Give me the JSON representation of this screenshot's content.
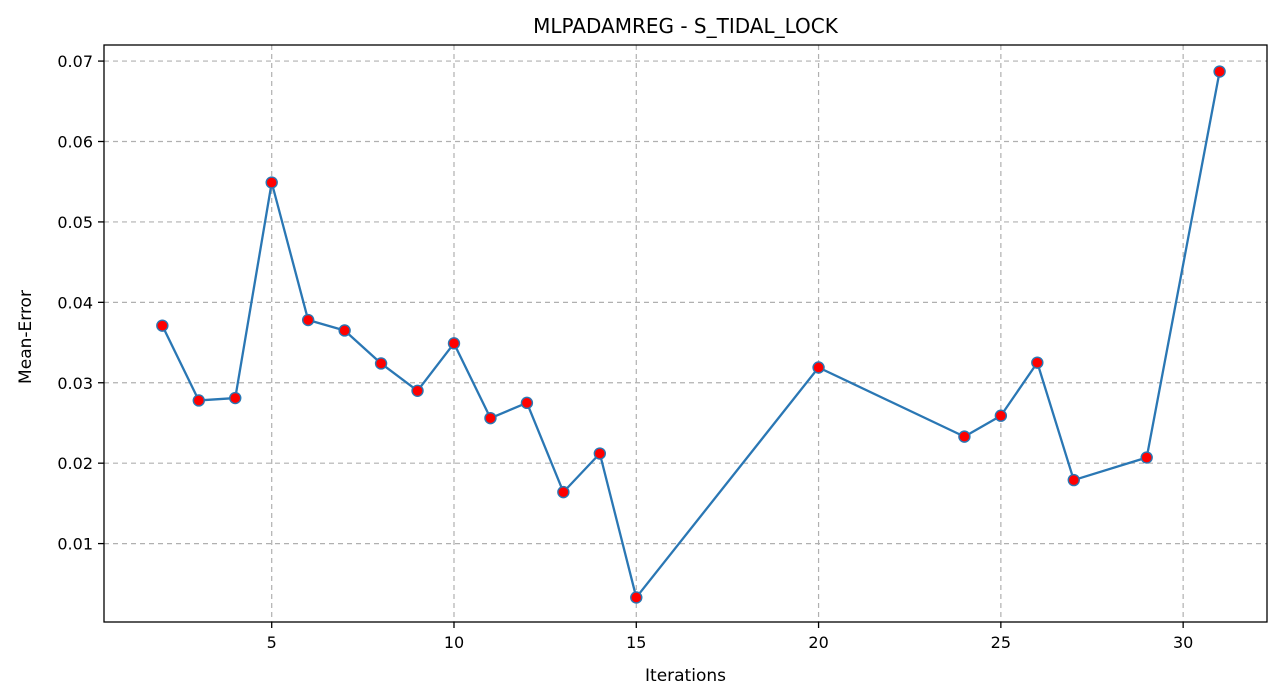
{
  "chart_data": {
    "type": "line",
    "title": "MLPADAMREG - S_TIDAL_LOCK",
    "xlabel": "Iterations",
    "ylabel": "Mean-Error",
    "xlim": [
      0.4,
      32.3
    ],
    "ylim": [
      0.00025,
      0.072
    ],
    "xticks": [
      5,
      10,
      15,
      20,
      25,
      30
    ],
    "yticks": [
      0.01,
      0.02,
      0.03,
      0.04,
      0.05,
      0.06,
      0.07
    ],
    "xtick_labels": [
      "5",
      "10",
      "15",
      "20",
      "25",
      "30"
    ],
    "ytick_labels": [
      "0.01",
      "0.02",
      "0.03",
      "0.04",
      "0.05",
      "0.06",
      "0.07"
    ],
    "grid": true,
    "series": [
      {
        "line_color": "#2a77b4",
        "marker_color": "#ff0000",
        "x": [
          2,
          3,
          4,
          5,
          6,
          7,
          8,
          9,
          10,
          11,
          12,
          13,
          14,
          15,
          20,
          24,
          25,
          26,
          27,
          29,
          31
        ],
        "y": [
          0.0371,
          0.0278,
          0.0281,
          0.0549,
          0.0378,
          0.0365,
          0.0324,
          0.029,
          0.0349,
          0.0256,
          0.0275,
          0.0164,
          0.0212,
          0.0033,
          0.0319,
          0.0233,
          0.0259,
          0.0325,
          0.0179,
          0.0207,
          0.0687
        ]
      }
    ]
  }
}
